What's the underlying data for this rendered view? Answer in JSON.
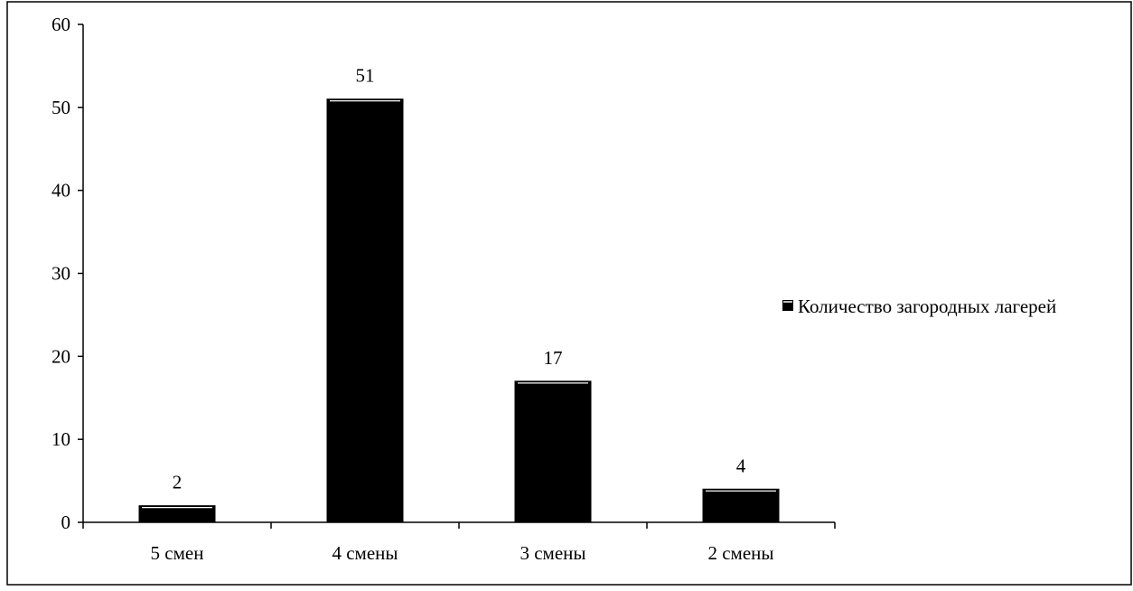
{
  "chart_data": {
    "type": "bar",
    "title": "",
    "xlabel": "",
    "ylabel": "",
    "categories": [
      "5 смен",
      "4 смены",
      "3 смены",
      "2 смены"
    ],
    "series": [
      {
        "name": "Количество загородных лагерей",
        "values": [
          2,
          51,
          17,
          4
        ],
        "color": "#000000"
      }
    ],
    "data_labels": [
      "2",
      "51",
      "17",
      "4"
    ],
    "ylim": [
      0,
      60
    ],
    "yticks": [
      0,
      10,
      20,
      30,
      40,
      50,
      60
    ],
    "ytick_labels": [
      "0",
      "10",
      "20",
      "30",
      "40",
      "50",
      "60"
    ],
    "grid": false,
    "legend": {
      "position": "right",
      "label": "Количество загородных лагерей"
    }
  }
}
